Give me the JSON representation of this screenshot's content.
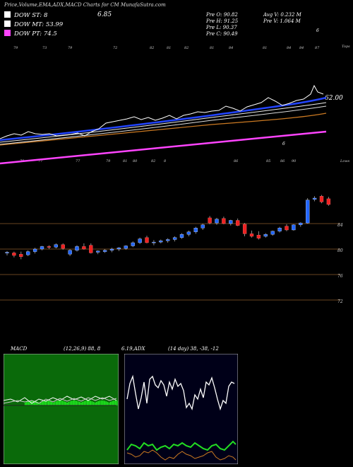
{
  "header": {
    "title": "Price,Volume,EMA,ADX,MACD Charts for CM MunafaSutra.com"
  },
  "legend": [
    {
      "label": "DOW ST: 8",
      "color": "#ffffff"
    },
    {
      "label": "DOW MT: 53.99",
      "color": "#ffffff"
    },
    {
      "label": "DOW PT: 74.5",
      "color": "#ff44ff"
    }
  ],
  "dow_value": "6.85",
  "stats": {
    "pre_o": "Pre  O: 90.82",
    "pre_h": "Pre  H: 91.25",
    "pre_l": "Pre  L: 90.37",
    "pre_c": "Pre  C: 90.49",
    "avg_v": "Avg V: 0.232  M",
    "pre_v": "Pre  V: 1.064  M"
  },
  "top_panel": {
    "label_top": "Tops",
    "label_bottom": "Lows",
    "ema_value": "62.00",
    "top_numbers": [
      "79",
      "73",
      "79",
      "72",
      "82",
      "81",
      "82",
      "81",
      "84",
      "81",
      "84",
      "84",
      "87"
    ],
    "bottom_numbers": [
      "79",
      "77",
      "77",
      "79",
      "81",
      "80",
      "82",
      "8",
      "86",
      "85",
      "86",
      "90"
    ],
    "mark_6_a": "6",
    "mark_6_b": "6"
  },
  "chart_data": {
    "type": "candlestick",
    "price_axis_ticks": [
      "84",
      "80",
      "76",
      "72"
    ],
    "candles": [
      {
        "o": 79.4,
        "h": 79.7,
        "l": 79.0,
        "c": 79.5
      },
      {
        "o": 79.4,
        "h": 79.6,
        "l": 78.7,
        "c": 79.0
      },
      {
        "o": 79.2,
        "h": 79.6,
        "l": 78.4,
        "c": 78.8
      },
      {
        "o": 79.1,
        "h": 79.8,
        "l": 78.9,
        "c": 79.6
      },
      {
        "o": 79.6,
        "h": 80.2,
        "l": 79.3,
        "c": 80.0
      },
      {
        "o": 80.0,
        "h": 80.5,
        "l": 79.8,
        "c": 80.4
      },
      {
        "o": 80.4,
        "h": 80.6,
        "l": 80.0,
        "c": 80.3
      },
      {
        "o": 80.3,
        "h": 80.9,
        "l": 80.1,
        "c": 80.7
      },
      {
        "o": 80.7,
        "h": 80.9,
        "l": 79.9,
        "c": 80.1
      },
      {
        "o": 79.2,
        "h": 80.0,
        "l": 78.9,
        "c": 79.8
      },
      {
        "o": 79.8,
        "h": 80.6,
        "l": 79.6,
        "c": 80.4
      },
      {
        "o": 80.4,
        "h": 80.9,
        "l": 79.9,
        "c": 80.0
      },
      {
        "o": 80.6,
        "h": 80.9,
        "l": 79.3,
        "c": 79.4
      },
      {
        "o": 79.5,
        "h": 79.8,
        "l": 79.2,
        "c": 79.7
      },
      {
        "o": 79.6,
        "h": 80.0,
        "l": 79.4,
        "c": 79.8
      },
      {
        "o": 79.8,
        "h": 80.2,
        "l": 79.5,
        "c": 80.0
      },
      {
        "o": 80.0,
        "h": 80.3,
        "l": 79.7,
        "c": 80.2
      },
      {
        "o": 80.1,
        "h": 80.6,
        "l": 79.9,
        "c": 80.5
      },
      {
        "o": 80.5,
        "h": 81.2,
        "l": 80.3,
        "c": 81.0
      },
      {
        "o": 81.0,
        "h": 81.8,
        "l": 80.8,
        "c": 81.6
      },
      {
        "o": 81.8,
        "h": 82.1,
        "l": 80.9,
        "c": 81.0
      },
      {
        "o": 81.0,
        "h": 81.4,
        "l": 80.6,
        "c": 81.1
      },
      {
        "o": 81.1,
        "h": 81.5,
        "l": 80.9,
        "c": 81.3
      },
      {
        "o": 81.3,
        "h": 81.7,
        "l": 81.0,
        "c": 81.5
      },
      {
        "o": 81.5,
        "h": 82.0,
        "l": 81.2,
        "c": 81.8
      },
      {
        "o": 81.8,
        "h": 82.5,
        "l": 81.6,
        "c": 82.3
      },
      {
        "o": 82.3,
        "h": 82.9,
        "l": 82.0,
        "c": 82.7
      },
      {
        "o": 82.7,
        "h": 83.5,
        "l": 82.4,
        "c": 83.3
      },
      {
        "o": 83.3,
        "h": 84.0,
        "l": 83.0,
        "c": 83.8
      },
      {
        "o": 84.9,
        "h": 85.2,
        "l": 83.9,
        "c": 84.1
      },
      {
        "o": 84.1,
        "h": 84.9,
        "l": 83.8,
        "c": 84.7
      },
      {
        "o": 84.8,
        "h": 85.1,
        "l": 83.9,
        "c": 84.0
      },
      {
        "o": 84.0,
        "h": 84.6,
        "l": 83.7,
        "c": 84.5
      },
      {
        "o": 84.5,
        "h": 84.8,
        "l": 83.6,
        "c": 83.7
      },
      {
        "o": 83.9,
        "h": 84.1,
        "l": 82.0,
        "c": 82.4
      },
      {
        "o": 82.4,
        "h": 82.9,
        "l": 81.8,
        "c": 82.0
      },
      {
        "o": 82.2,
        "h": 82.8,
        "l": 81.5,
        "c": 81.7
      },
      {
        "o": 82.0,
        "h": 82.5,
        "l": 81.8,
        "c": 82.3
      },
      {
        "o": 82.3,
        "h": 82.9,
        "l": 82.1,
        "c": 82.8
      },
      {
        "o": 82.8,
        "h": 83.5,
        "l": 82.6,
        "c": 83.3
      },
      {
        "o": 83.6,
        "h": 83.9,
        "l": 82.8,
        "c": 83.0
      },
      {
        "o": 83.0,
        "h": 83.9,
        "l": 82.9,
        "c": 83.8
      },
      {
        "o": 83.8,
        "h": 84.2,
        "l": 83.5,
        "c": 84.1
      },
      {
        "o": 84.1,
        "h": 88.0,
        "l": 84.0,
        "c": 87.7
      },
      {
        "o": 87.8,
        "h": 88.3,
        "l": 87.5,
        "c": 88.0
      },
      {
        "o": 88.3,
        "h": 88.5,
        "l": 87.2,
        "c": 87.4
      },
      {
        "o": 87.9,
        "h": 88.2,
        "l": 86.8,
        "c": 87.0
      }
    ],
    "indicators": {
      "macd_label": "MACD",
      "macd_values": "(12,26,9) 88, 8",
      "macd_signal_text": "6.19,ADX",
      "adx_label": "ADX",
      "adx_values": "(14 day) 38, -38, -12"
    }
  }
}
